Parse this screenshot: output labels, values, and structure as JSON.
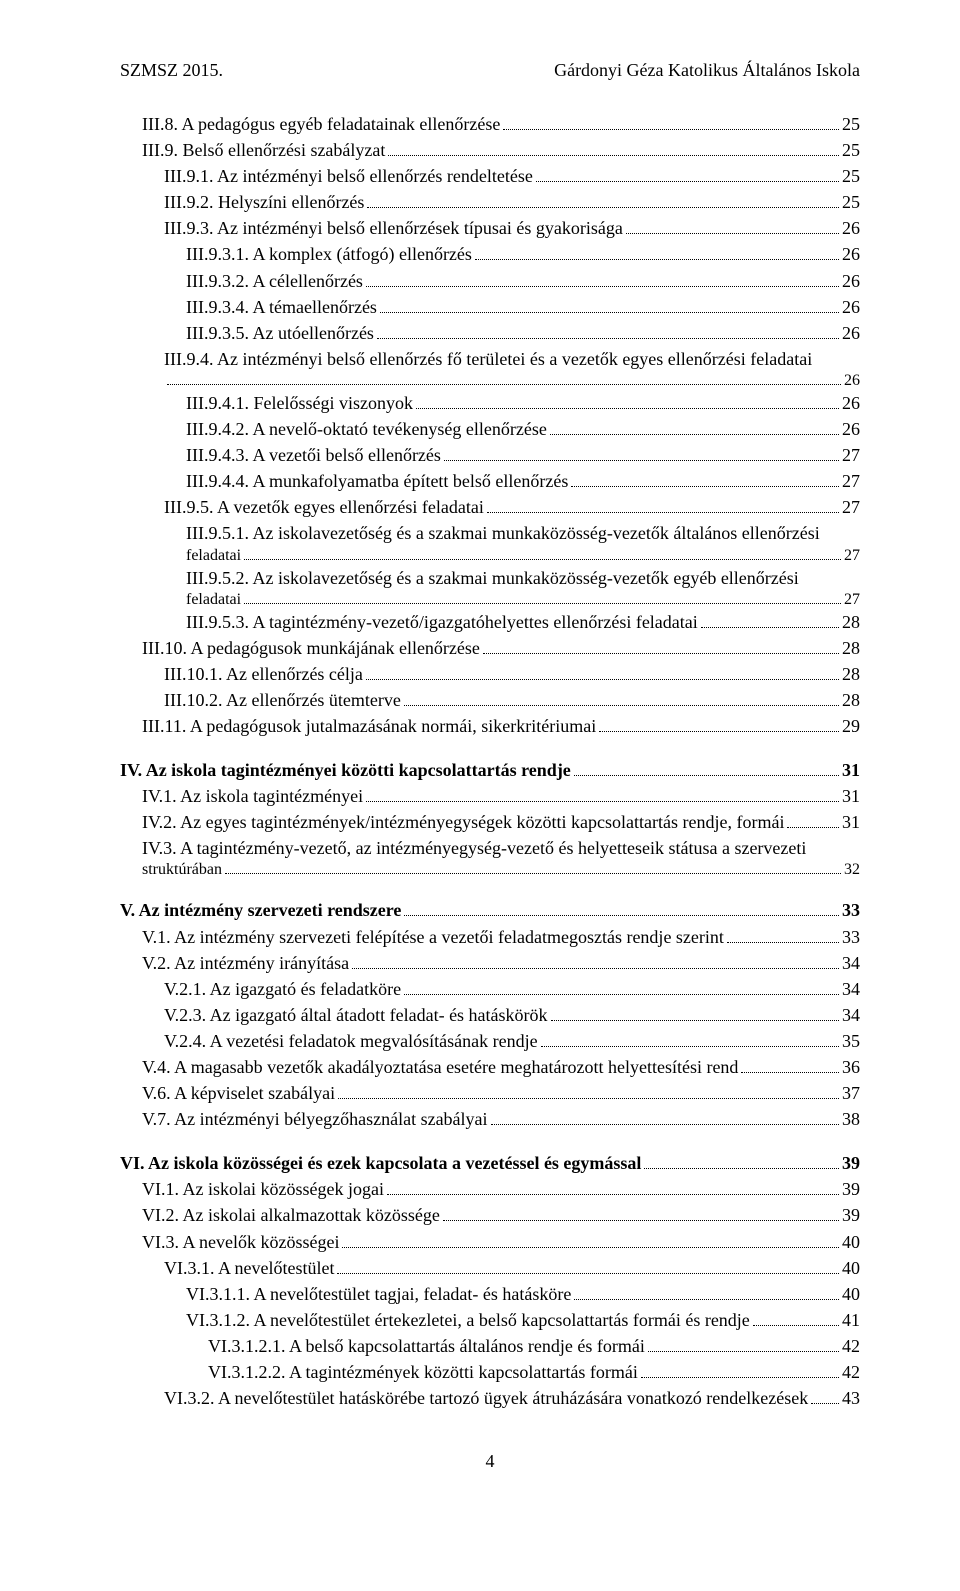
{
  "header": {
    "left": "SZMSZ 2015.",
    "right": "Gárdonyi Géza Katolikus Általános Iskola"
  },
  "toc": [
    {
      "indent": 1,
      "label": "III.8. A pedagógus egyéb feladatainak ellenőrzése",
      "page": "25"
    },
    {
      "indent": 1,
      "label": "III.9. Belső ellenőrzési szabályzat",
      "page": "25"
    },
    {
      "indent": 2,
      "label": "III.9.1. Az intézményi belső ellenőrzés rendeltetése",
      "page": "25"
    },
    {
      "indent": 2,
      "label": "III.9.2. Helyszíni ellenőrzés",
      "page": "25"
    },
    {
      "indent": 2,
      "label": "III.9.3. Az intézményi belső ellenőrzések típusai és gyakorisága",
      "page": "26"
    },
    {
      "indent": 3,
      "label": "III.9.3.1. A komplex (átfogó) ellenőrzés",
      "page": "26"
    },
    {
      "indent": 3,
      "label": "III.9.3.2. A célellenőrzés",
      "page": "26"
    },
    {
      "indent": 3,
      "label": "III.9.3.4. A témaellenőrzés",
      "page": "26"
    },
    {
      "indent": 3,
      "label": "III.9.3.5. Az utóellenőrzés",
      "page": "26"
    },
    {
      "indent": 2,
      "label": "III.9.4. Az intézményi belső ellenőrzés fő területei és a vezetők egyes ellenőrzési feladatai",
      "page": "26",
      "wrap": true,
      "wrapFirst": "III.9.4. Az intézményi belső ellenőrzés fő területei és a vezetők egyes ellenőrzési feladatai"
    },
    {
      "indent": 3,
      "label": "III.9.4.1. Felelősségi viszonyok",
      "page": "26"
    },
    {
      "indent": 3,
      "label": "III.9.4.2. A nevelő-oktató tevékenység ellenőrzése",
      "page": "26"
    },
    {
      "indent": 3,
      "label": "III.9.4.3. A vezetői belső ellenőrzés",
      "page": "27"
    },
    {
      "indent": 3,
      "label": "III.9.4.4. A munkafolyamatba épített belső ellenőrzés",
      "page": "27"
    },
    {
      "indent": 2,
      "label": "III.9.5. A vezetők egyes ellenőrzési feladatai",
      "page": "27"
    },
    {
      "indent": 3,
      "label": "III.9.5.1. Az iskolavezetőség és a szakmai munkaközösség-vezetők általános ellenőrzési",
      "wrapFirst": "III.9.5.1. Az iskolavezetőség és a szakmai munkaközösség-vezetők általános ellenőrzési",
      "wrapLast": "feladatai",
      "page": "27",
      "wrap": true
    },
    {
      "indent": 3,
      "label": "III.9.5.2. Az iskolavezetőség és a szakmai munkaközösség-vezetők egyéb ellenőrzési",
      "wrapFirst": "III.9.5.2. Az iskolavezetőség és a szakmai munkaközösség-vezetők egyéb ellenőrzési",
      "wrapLast": "feladatai",
      "page": "27",
      "wrap": true
    },
    {
      "indent": 3,
      "label": "III.9.5.3. A tagintézmény-vezető/igazgatóhelyettes ellenőrzési feladatai",
      "page": "28"
    },
    {
      "indent": 1,
      "label": "III.10. A pedagógusok munkájának ellenőrzése",
      "page": "28"
    },
    {
      "indent": 2,
      "label": "III.10.1. Az ellenőrzés célja",
      "page": "28"
    },
    {
      "indent": 2,
      "label": "III.10.2. Az ellenőrzés ütemterve",
      "page": "28"
    },
    {
      "indent": 1,
      "label": "III.11. A pedagógusok jutalmazásának normái, sikerkritériumai",
      "page": "29"
    },
    {
      "indent": 0,
      "label": "IV.  Az iskola tagintézményei közötti kapcsolattartás rendje",
      "page": "31",
      "bold": true,
      "gap": true
    },
    {
      "indent": 1,
      "label": "IV.1. Az iskola tagintézményei",
      "page": "31"
    },
    {
      "indent": 1,
      "label": "IV.2. Az egyes tagintézmények/intézményegységek közötti kapcsolattartás rendje, formái",
      "page": "31"
    },
    {
      "indent": 1,
      "wrapFirst": "IV.3. A tagintézmény-vezető, az intézményegység-vezető és helyetteseik státusa a szervezeti",
      "wrapLast": "struktúrában",
      "page": "32",
      "wrap": true
    },
    {
      "indent": 0,
      "label": "V. Az intézmény szervezeti rendszere",
      "page": "33",
      "bold": true,
      "gap": true
    },
    {
      "indent": 1,
      "label": "V.1. Az intézmény szervezeti felépítése a vezetői feladatmegosztás rendje szerint",
      "page": "33"
    },
    {
      "indent": 1,
      "label": "V.2. Az intézmény irányítása",
      "page": "34"
    },
    {
      "indent": 2,
      "label": "V.2.1. Az igazgató és feladatköre",
      "page": "34"
    },
    {
      "indent": 2,
      "label": "V.2.3. Az igazgató által átadott feladat- és hatáskörök",
      "page": "34"
    },
    {
      "indent": 2,
      "label": "V.2.4. A vezetési feladatok megvalósításának rendje",
      "page": "35"
    },
    {
      "indent": 1,
      "label": "V.4. A magasabb vezetők akadályoztatása esetére meghatározott helyettesítési rend",
      "page": "36"
    },
    {
      "indent": 1,
      "label": "V.6. A képviselet szabályai",
      "page": "37"
    },
    {
      "indent": 1,
      "label": "V.7. Az intézményi bélyegzőhasználat szabályai",
      "page": "38"
    },
    {
      "indent": 0,
      "label": "VI. Az iskola közösségei és ezek kapcsolata a vezetéssel és egymással",
      "page": "39",
      "bold": true,
      "gap": true
    },
    {
      "indent": 1,
      "label": "VI.1. Az iskolai közösségek jogai",
      "page": "39"
    },
    {
      "indent": 1,
      "label": "VI.2. Az iskolai alkalmazottak közössége",
      "page": "39"
    },
    {
      "indent": 1,
      "label": "VI.3. A nevelők közösségei",
      "page": "40"
    },
    {
      "indent": 2,
      "label": "VI.3.1. A nevelőtestület",
      "page": "40"
    },
    {
      "indent": 3,
      "label": "VI.3.1.1. A nevelőtestület tagjai, feladat- és hatásköre",
      "page": "40"
    },
    {
      "indent": 3,
      "label": "VI.3.1.2. A nevelőtestület értekezletei, a belső kapcsolattartás formái és rendje",
      "page": "41"
    },
    {
      "indent": 4,
      "label": "VI.3.1.2.1. A belső kapcsolattartás általános rendje és formái",
      "page": "42"
    },
    {
      "indent": 4,
      "label": "VI.3.1.2.2. A tagintézmények közötti kapcsolattartás formái",
      "page": "42"
    },
    {
      "indent": 2,
      "label": "VI.3.2. A nevelőtestület hatáskörébe tartozó ügyek átruházására vonatkozó rendelkezések",
      "page": "43"
    }
  ],
  "footer": {
    "pageNumber": "4"
  }
}
